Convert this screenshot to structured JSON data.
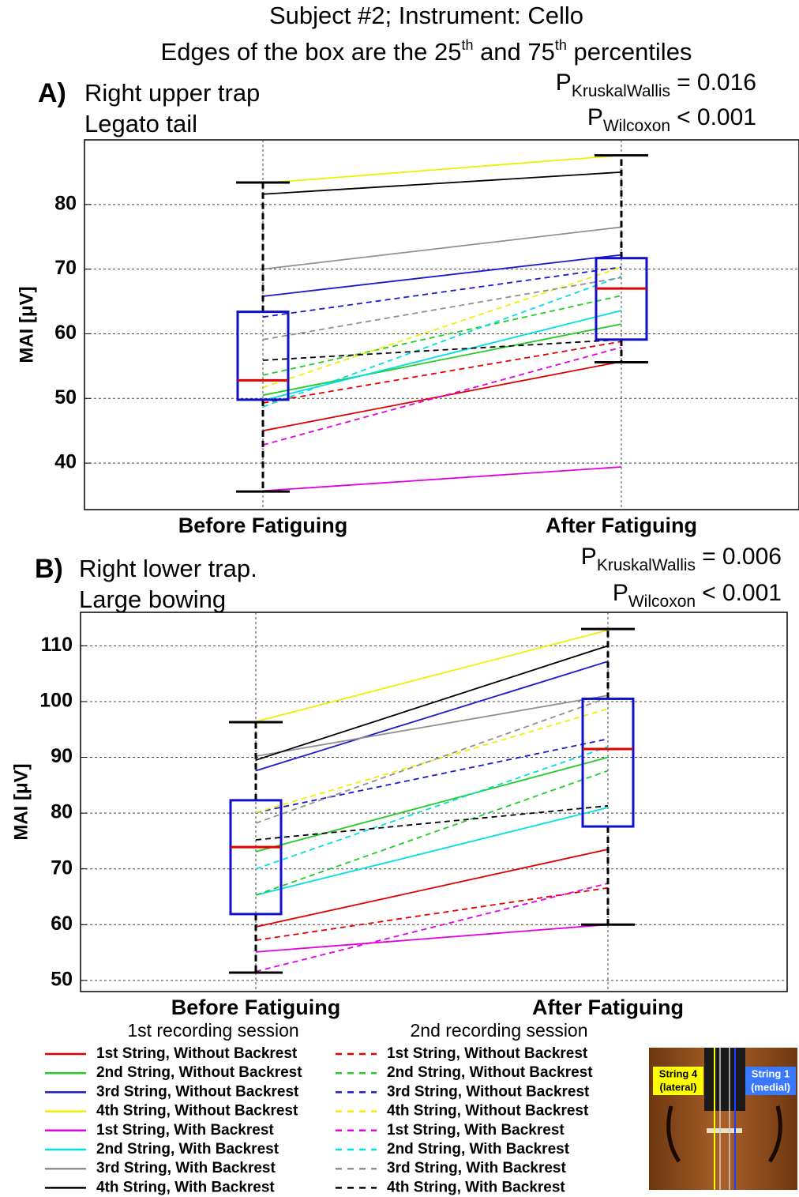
{
  "title": "Subject #2; Instrument: Cello",
  "subtitle": [
    {
      "text": "Edges of the box are the 25"
    },
    {
      "text": "th",
      "sup": true
    },
    {
      "text": " and 75"
    },
    {
      "text": "th",
      "sup": true
    },
    {
      "text": " percentiles"
    }
  ],
  "chart_data": [
    {
      "type": "line",
      "panel": "A)",
      "title": [
        "Right upper trap",
        "Legato tail"
      ],
      "annotations": [
        {
          "symbol": "P",
          "subscript": "KruskalWallis",
          "text": "= 0.016"
        },
        {
          "symbol": "P",
          "subscript": "Wilcoxon",
          "text": "< 0.001"
        }
      ],
      "ylabel": "MAI [μV]",
      "categories": [
        "Before Fatiguing",
        "After Fatiguing"
      ],
      "ylim": [
        32.8,
        90
      ],
      "yticks": [
        40,
        50,
        60,
        70,
        80
      ],
      "grid": true,
      "series": [
        {
          "color": "#e00000",
          "dash": false,
          "values": [
            45.0,
            55.7
          ]
        },
        {
          "color": "#22cc22",
          "dash": false,
          "values": [
            50.5,
            61.5
          ]
        },
        {
          "color": "#1a1acc",
          "dash": false,
          "values": [
            65.8,
            72.2
          ]
        },
        {
          "color": "#f0f000",
          "dash": false,
          "values": [
            83.3,
            87.6
          ]
        },
        {
          "color": "#e000e0",
          "dash": false,
          "values": [
            35.7,
            39.4
          ]
        },
        {
          "color": "#00e0e0",
          "dash": false,
          "values": [
            49.7,
            63.6
          ]
        },
        {
          "color": "#909090",
          "dash": false,
          "values": [
            70.0,
            76.5
          ]
        },
        {
          "color": "#000000",
          "dash": false,
          "values": [
            81.6,
            85.0
          ]
        },
        {
          "color": "#e00000",
          "dash": true,
          "values": [
            49.3,
            58.8
          ]
        },
        {
          "color": "#22cc22",
          "dash": true,
          "values": [
            53.6,
            65.9
          ]
        },
        {
          "color": "#1a1acc",
          "dash": true,
          "values": [
            62.6,
            70.3
          ]
        },
        {
          "color": "#f0f000",
          "dash": true,
          "values": [
            51.7,
            70.3
          ]
        },
        {
          "color": "#e000e0",
          "dash": true,
          "values": [
            42.8,
            57.9
          ]
        },
        {
          "color": "#00e0e0",
          "dash": true,
          "values": [
            48.7,
            68.9
          ]
        },
        {
          "color": "#909090",
          "dash": true,
          "values": [
            59.1,
            68.7
          ]
        },
        {
          "color": "#000000",
          "dash": true,
          "values": [
            55.9,
            59.1
          ]
        }
      ],
      "boxes": [
        {
          "whisker_low": 35.6,
          "q1": 49.8,
          "median": 52.8,
          "q3": 63.4,
          "whisker_high": 83.4
        },
        {
          "whisker_low": 55.6,
          "q1": 59.1,
          "median": 67.0,
          "q3": 71.7,
          "whisker_high": 87.6
        }
      ],
      "box_color": "#1010cc",
      "median_color": "#e00000"
    },
    {
      "type": "line",
      "panel": "B)",
      "title": [
        "Right lower trap.",
        "Large bowing"
      ],
      "annotations": [
        {
          "symbol": "P",
          "subscript": "KruskalWallis",
          "text": "= 0.006"
        },
        {
          "symbol": "P",
          "subscript": "Wilcoxon",
          "text": "< 0.001"
        }
      ],
      "ylabel": "MAI [μV]",
      "categories": [
        "Before Fatiguing",
        "After Fatiguing"
      ],
      "ylim": [
        48,
        116
      ],
      "yticks": [
        50,
        60,
        70,
        80,
        90,
        100,
        110
      ],
      "grid": true,
      "legend_titles": [
        "1st recording session",
        "2nd recording session"
      ],
      "series": [
        {
          "name": "1st String, Without Backrest",
          "color": "#e00000",
          "dash": false,
          "values": [
            59.6,
            73.5
          ]
        },
        {
          "name": "2nd String, Without Backrest",
          "color": "#22cc22",
          "dash": false,
          "values": [
            73.1,
            90.0
          ]
        },
        {
          "name": "3rd String, Without Backrest",
          "color": "#1a1acc",
          "dash": false,
          "values": [
            87.6,
            107.2
          ]
        },
        {
          "name": "4th String, Without Backrest",
          "color": "#f0f000",
          "dash": false,
          "values": [
            96.4,
            112.8
          ]
        },
        {
          "name": "1st String, With Backrest",
          "color": "#e000e0",
          "dash": false,
          "values": [
            55.1,
            60.0
          ]
        },
        {
          "name": "2nd String, With Backrest",
          "color": "#00e0e0",
          "dash": false,
          "values": [
            65.3,
            81.0
          ]
        },
        {
          "name": "3rd String, With Backrest",
          "color": "#909090",
          "dash": false,
          "values": [
            90.2,
            101.1
          ]
        },
        {
          "name": "4th String, With Backrest",
          "color": "#000000",
          "dash": false,
          "values": [
            89.5,
            110.0
          ]
        },
        {
          "name": "1st String, Without Backrest",
          "color": "#e00000",
          "dash": true,
          "values": [
            57.2,
            66.6
          ]
        },
        {
          "name": "2nd String, Without Backrest",
          "color": "#22cc22",
          "dash": true,
          "values": [
            65.3,
            87.6
          ]
        },
        {
          "name": "3rd String, Without Backrest",
          "color": "#1a1acc",
          "dash": true,
          "values": [
            80.1,
            93.3
          ]
        },
        {
          "name": "4th String, Without Backrest",
          "color": "#f0f000",
          "dash": true,
          "values": [
            80.1,
            98.7
          ]
        },
        {
          "name": "1st String, With Backrest",
          "color": "#e000e0",
          "dash": true,
          "values": [
            51.6,
            67.4
          ]
        },
        {
          "name": "2nd String, With Backrest",
          "color": "#00e0e0",
          "dash": true,
          "values": [
            70.0,
            91.9
          ]
        },
        {
          "name": "3rd String, With Backrest",
          "color": "#909090",
          "dash": true,
          "values": [
            78.2,
            100.7
          ]
        },
        {
          "name": "4th String, With Backrest",
          "color": "#000000",
          "dash": true,
          "values": [
            75.2,
            81.3
          ]
        }
      ],
      "boxes": [
        {
          "whisker_low": 51.4,
          "q1": 61.9,
          "median": 73.9,
          "q3": 82.3,
          "whisker_high": 96.3
        },
        {
          "whisker_low": 60.0,
          "q1": 77.6,
          "median": 91.5,
          "q3": 100.5,
          "whisker_high": 113.0
        }
      ],
      "box_color": "#1010cc",
      "median_color": "#e00000"
    }
  ],
  "image_labels": [
    [
      "String 4",
      "(lateral)"
    ],
    [
      "String 1",
      "(medial)"
    ]
  ]
}
